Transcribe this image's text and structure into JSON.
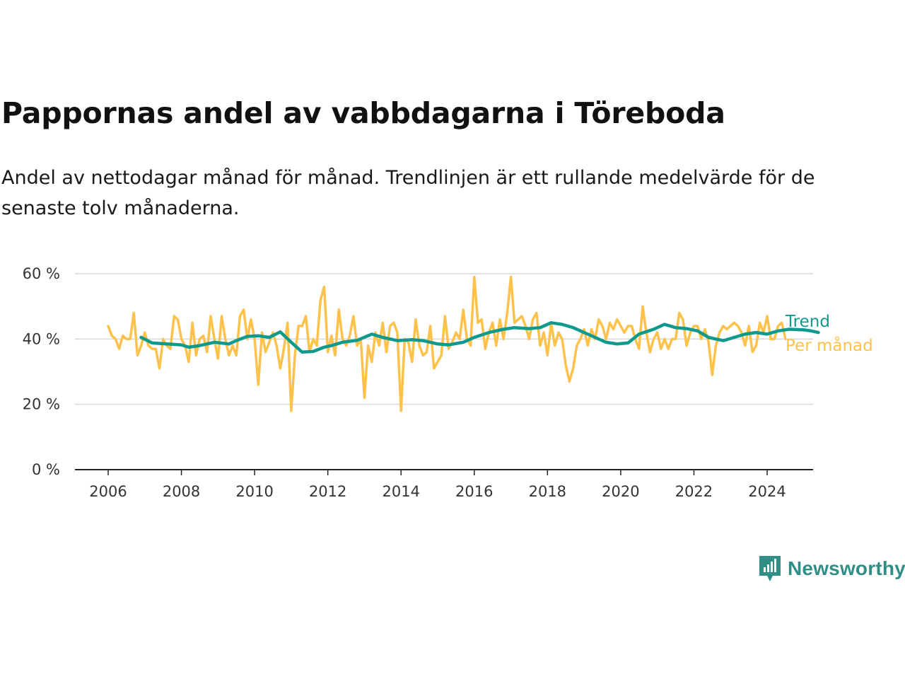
{
  "title": "Pappornas andel av vabbdagarna i Töreboda",
  "subtitle": "Andel av nettodagar månad för månad. Trendlinjen är ett rullande medelvärde för de senaste tolv månaderna.",
  "brand": {
    "name": "Newsworthy",
    "icon": "newsworthy-logo-icon",
    "color": "#2f8f86"
  },
  "chart_data": {
    "type": "line",
    "ylim": [
      0,
      60
    ],
    "xlim": [
      2006,
      2025
    ],
    "y_ticks": [
      {
        "value": 0,
        "label": "0 %"
      },
      {
        "value": 20,
        "label": "20 %"
      },
      {
        "value": 40,
        "label": "40 %"
      },
      {
        "value": 60,
        "label": "60 %"
      }
    ],
    "x_ticks": [
      {
        "value": 2006,
        "label": "2006"
      },
      {
        "value": 2008,
        "label": "2008"
      },
      {
        "value": 2010,
        "label": "2010"
      },
      {
        "value": 2012,
        "label": "2012"
      },
      {
        "value": 2014,
        "label": "2014"
      },
      {
        "value": 2016,
        "label": "2016"
      },
      {
        "value": 2018,
        "label": "2018"
      },
      {
        "value": 2020,
        "label": "2020"
      },
      {
        "value": 2022,
        "label": "2022"
      },
      {
        "value": 2024,
        "label": "2024"
      }
    ],
    "grid": true,
    "legend_position": "right",
    "series": [
      {
        "name": "Per månad",
        "color": "#fcc24c",
        "points": [
          [
            2006.0,
            44
          ],
          [
            2006.1,
            41
          ],
          [
            2006.2,
            40
          ],
          [
            2006.3,
            37
          ],
          [
            2006.4,
            41
          ],
          [
            2006.5,
            40
          ],
          [
            2006.6,
            40
          ],
          [
            2006.7,
            48
          ],
          [
            2006.8,
            35
          ],
          [
            2006.9,
            38
          ],
          [
            2007.0,
            42
          ],
          [
            2007.1,
            38
          ],
          [
            2007.2,
            37
          ],
          [
            2007.3,
            37
          ],
          [
            2007.4,
            31
          ],
          [
            2007.5,
            40
          ],
          [
            2007.6,
            38
          ],
          [
            2007.7,
            37
          ],
          [
            2007.8,
            47
          ],
          [
            2007.9,
            46
          ],
          [
            2008.0,
            40
          ],
          [
            2008.1,
            38
          ],
          [
            2008.2,
            33
          ],
          [
            2008.3,
            45
          ],
          [
            2008.4,
            35
          ],
          [
            2008.5,
            40
          ],
          [
            2008.6,
            41
          ],
          [
            2008.7,
            36
          ],
          [
            2008.8,
            47
          ],
          [
            2008.9,
            40
          ],
          [
            2009.0,
            34
          ],
          [
            2009.1,
            47
          ],
          [
            2009.2,
            40
          ],
          [
            2009.3,
            35
          ],
          [
            2009.4,
            38
          ],
          [
            2009.5,
            35
          ],
          [
            2009.6,
            47
          ],
          [
            2009.7,
            49
          ],
          [
            2009.8,
            40
          ],
          [
            2009.9,
            46
          ],
          [
            2010.0,
            40
          ],
          [
            2010.1,
            26
          ],
          [
            2010.2,
            42
          ],
          [
            2010.3,
            36
          ],
          [
            2010.4,
            39
          ],
          [
            2010.5,
            42
          ],
          [
            2010.6,
            38
          ],
          [
            2010.7,
            31
          ],
          [
            2010.8,
            37
          ],
          [
            2010.9,
            45
          ],
          [
            2011.0,
            18
          ],
          [
            2011.1,
            35
          ],
          [
            2011.2,
            44
          ],
          [
            2011.3,
            44
          ],
          [
            2011.4,
            47
          ],
          [
            2011.5,
            36
          ],
          [
            2011.6,
            40
          ],
          [
            2011.7,
            38
          ],
          [
            2011.8,
            52
          ],
          [
            2011.9,
            56
          ],
          [
            2012.0,
            36
          ],
          [
            2012.1,
            41
          ],
          [
            2012.2,
            35
          ],
          [
            2012.3,
            49
          ],
          [
            2012.4,
            40
          ],
          [
            2012.5,
            38
          ],
          [
            2012.6,
            41
          ],
          [
            2012.7,
            47
          ],
          [
            2012.8,
            38
          ],
          [
            2012.9,
            40
          ],
          [
            2013.0,
            22
          ],
          [
            2013.1,
            38
          ],
          [
            2013.2,
            33
          ],
          [
            2013.3,
            42
          ],
          [
            2013.4,
            38
          ],
          [
            2013.5,
            45
          ],
          [
            2013.6,
            36
          ],
          [
            2013.7,
            44
          ],
          [
            2013.8,
            45
          ],
          [
            2013.9,
            42
          ],
          [
            2014.0,
            18
          ],
          [
            2014.1,
            40
          ],
          [
            2014.2,
            39
          ],
          [
            2014.3,
            33
          ],
          [
            2014.4,
            46
          ],
          [
            2014.5,
            38
          ],
          [
            2014.6,
            35
          ],
          [
            2014.7,
            36
          ],
          [
            2014.8,
            44
          ],
          [
            2014.9,
            31
          ],
          [
            2015.0,
            33
          ],
          [
            2015.1,
            35
          ],
          [
            2015.2,
            47
          ],
          [
            2015.3,
            37
          ],
          [
            2015.4,
            39
          ],
          [
            2015.5,
            42
          ],
          [
            2015.6,
            40
          ],
          [
            2015.7,
            49
          ],
          [
            2015.8,
            40
          ],
          [
            2015.9,
            38
          ],
          [
            2016.0,
            59
          ],
          [
            2016.1,
            45
          ],
          [
            2016.2,
            46
          ],
          [
            2016.3,
            37
          ],
          [
            2016.4,
            42
          ],
          [
            2016.5,
            45
          ],
          [
            2016.6,
            38
          ],
          [
            2016.7,
            46
          ],
          [
            2016.8,
            40
          ],
          [
            2016.9,
            48
          ],
          [
            2017.0,
            59
          ],
          [
            2017.1,
            45
          ],
          [
            2017.2,
            46
          ],
          [
            2017.3,
            47
          ],
          [
            2017.4,
            44
          ],
          [
            2017.5,
            40
          ],
          [
            2017.6,
            46
          ],
          [
            2017.7,
            48
          ],
          [
            2017.8,
            38
          ],
          [
            2017.9,
            42
          ],
          [
            2018.0,
            35
          ],
          [
            2018.1,
            45
          ],
          [
            2018.2,
            38
          ],
          [
            2018.3,
            42
          ],
          [
            2018.4,
            40
          ],
          [
            2018.5,
            32
          ],
          [
            2018.6,
            27
          ],
          [
            2018.7,
            31
          ],
          [
            2018.8,
            38
          ],
          [
            2018.9,
            40
          ],
          [
            2019.0,
            43
          ],
          [
            2019.1,
            38
          ],
          [
            2019.2,
            43
          ],
          [
            2019.3,
            40
          ],
          [
            2019.4,
            46
          ],
          [
            2019.5,
            44
          ],
          [
            2019.6,
            40
          ],
          [
            2019.7,
            45
          ],
          [
            2019.8,
            43
          ],
          [
            2019.9,
            46
          ],
          [
            2020.0,
            44
          ],
          [
            2020.1,
            42
          ],
          [
            2020.2,
            44
          ],
          [
            2020.3,
            44
          ],
          [
            2020.4,
            40
          ],
          [
            2020.5,
            37
          ],
          [
            2020.6,
            50
          ],
          [
            2020.7,
            42
          ],
          [
            2020.8,
            36
          ],
          [
            2020.9,
            40
          ],
          [
            2021.0,
            42
          ],
          [
            2021.1,
            37
          ],
          [
            2021.2,
            40
          ],
          [
            2021.3,
            37
          ],
          [
            2021.4,
            40
          ],
          [
            2021.5,
            40
          ],
          [
            2021.6,
            48
          ],
          [
            2021.7,
            46
          ],
          [
            2021.8,
            38
          ],
          [
            2021.9,
            42
          ],
          [
            2022.0,
            44
          ],
          [
            2022.1,
            44
          ],
          [
            2022.2,
            40
          ],
          [
            2022.3,
            43
          ],
          [
            2022.4,
            39
          ],
          [
            2022.5,
            29
          ],
          [
            2022.6,
            38
          ],
          [
            2022.7,
            42
          ],
          [
            2022.8,
            44
          ],
          [
            2022.9,
            43
          ],
          [
            2023.0,
            44
          ],
          [
            2023.1,
            45
          ],
          [
            2023.2,
            44
          ],
          [
            2023.3,
            42
          ],
          [
            2023.4,
            38
          ],
          [
            2023.5,
            44
          ],
          [
            2023.6,
            36
          ],
          [
            2023.7,
            38
          ],
          [
            2023.8,
            45
          ],
          [
            2023.9,
            42
          ],
          [
            2024.0,
            47
          ],
          [
            2024.1,
            40
          ],
          [
            2024.2,
            40
          ],
          [
            2024.3,
            44
          ],
          [
            2024.4,
            45
          ],
          [
            2024.5,
            40
          ]
        ]
      },
      {
        "name": "Trend",
        "color": "#109a8e",
        "points": [
          [
            2006.9,
            40.5
          ],
          [
            2007.2,
            38.8
          ],
          [
            2007.6,
            38.5
          ],
          [
            2008.0,
            38.2
          ],
          [
            2008.2,
            37.5
          ],
          [
            2008.5,
            38.0
          ],
          [
            2008.9,
            39.0
          ],
          [
            2009.3,
            38.5
          ],
          [
            2009.5,
            39.5
          ],
          [
            2009.8,
            40.8
          ],
          [
            2010.1,
            41.0
          ],
          [
            2010.4,
            40.5
          ],
          [
            2010.7,
            42.2
          ],
          [
            2011.0,
            39.0
          ],
          [
            2011.3,
            36.0
          ],
          [
            2011.6,
            36.2
          ],
          [
            2011.9,
            37.5
          ],
          [
            2012.1,
            38.0
          ],
          [
            2012.4,
            39.0
          ],
          [
            2012.8,
            39.6
          ],
          [
            2013.2,
            41.5
          ],
          [
            2013.5,
            40.5
          ],
          [
            2013.9,
            39.5
          ],
          [
            2014.3,
            39.8
          ],
          [
            2014.6,
            39.5
          ],
          [
            2015.0,
            38.5
          ],
          [
            2015.3,
            38.2
          ],
          [
            2015.7,
            39.0
          ],
          [
            2016.0,
            40.5
          ],
          [
            2016.4,
            42.0
          ],
          [
            2016.8,
            43.0
          ],
          [
            2017.1,
            43.5
          ],
          [
            2017.5,
            43.2
          ],
          [
            2017.8,
            43.5
          ],
          [
            2018.1,
            45.0
          ],
          [
            2018.4,
            44.5
          ],
          [
            2018.7,
            43.5
          ],
          [
            2019.0,
            42.0
          ],
          [
            2019.3,
            40.5
          ],
          [
            2019.6,
            39.0
          ],
          [
            2019.9,
            38.5
          ],
          [
            2020.2,
            38.8
          ],
          [
            2020.5,
            41.5
          ],
          [
            2020.9,
            43.0
          ],
          [
            2021.2,
            44.5
          ],
          [
            2021.5,
            43.5
          ],
          [
            2021.8,
            43.2
          ],
          [
            2022.1,
            42.5
          ],
          [
            2022.4,
            40.5
          ],
          [
            2022.8,
            39.5
          ],
          [
            2023.1,
            40.5
          ],
          [
            2023.4,
            41.5
          ],
          [
            2023.7,
            42.0
          ],
          [
            2024.0,
            41.5
          ],
          [
            2024.3,
            42.5
          ],
          [
            2024.6,
            43.0
          ],
          [
            2025.0,
            42.8
          ],
          [
            2025.2,
            42.5
          ],
          [
            2025.4,
            42.0
          ]
        ]
      }
    ]
  }
}
